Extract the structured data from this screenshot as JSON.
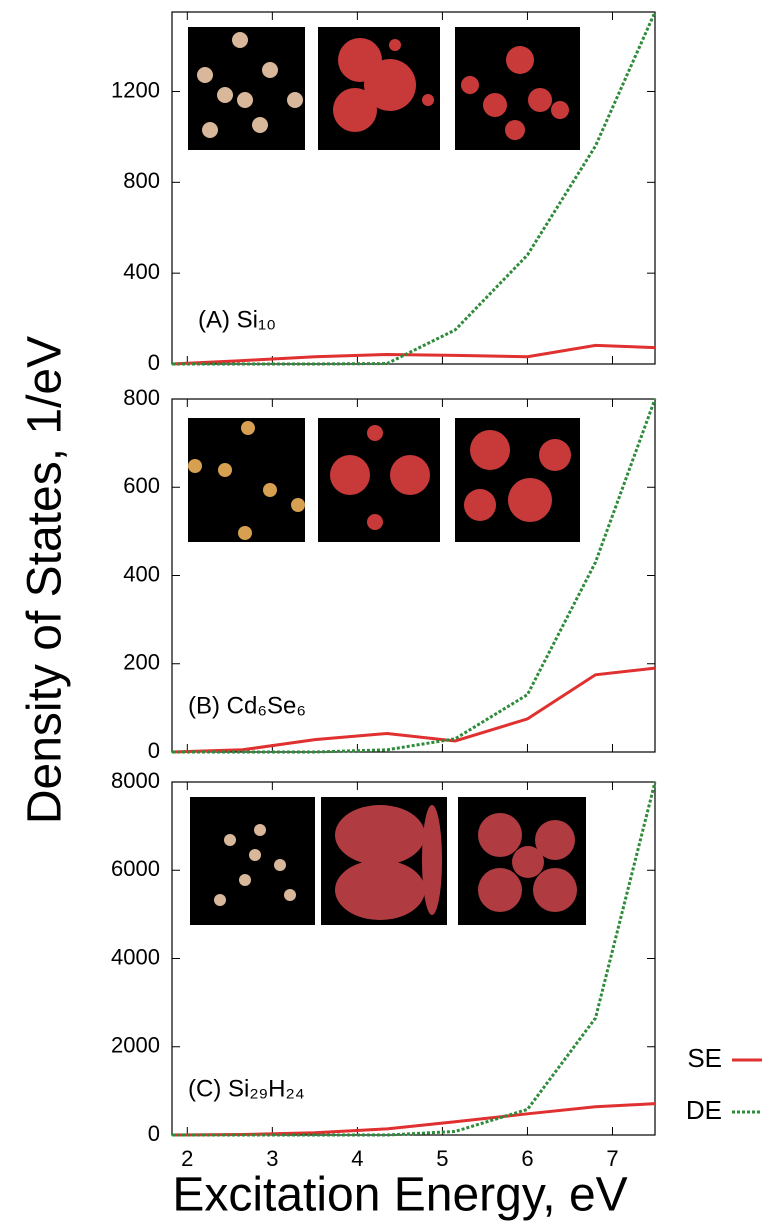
{
  "xlabel": "Excitation Energy, eV",
  "ylabel": "Density of States, 1/eV",
  "chart_data": [
    {
      "type": "line",
      "annotation": "(A) Si₁₀",
      "x": [
        1.82,
        2.65,
        3.5,
        4.35,
        5.15,
        6.0,
        6.8,
        7.5
      ],
      "xlim": [
        1.82,
        7.5
      ],
      "xticks": [
        2,
        3,
        4,
        5,
        6,
        7
      ],
      "ylim": [
        0,
        1550
      ],
      "yticks": [
        0,
        400,
        800,
        1200
      ],
      "series": [
        {
          "color": "#e03030",
          "line_style": "solid",
          "values": [
            0,
            15,
            32,
            42,
            38,
            32,
            82,
            72
          ]
        },
        {
          "color": "#2e8b3a",
          "line_style": "dotted",
          "values": [
            0,
            0,
            0,
            2,
            150,
            480,
            960,
            1550
          ]
        }
      ]
    },
    {
      "type": "line",
      "annotation": "(B) Cd₆Se₆",
      "x": [
        1.82,
        2.65,
        3.5,
        4.35,
        5.15,
        6.0,
        6.8,
        7.5
      ],
      "xlim": [
        1.82,
        7.5
      ],
      "xticks": [
        2,
        3,
        4,
        5,
        6,
        7
      ],
      "ylim": [
        0,
        800
      ],
      "yticks": [
        0,
        200,
        400,
        600,
        800
      ],
      "series": [
        {
          "color": "#e03030",
          "line_style": "solid",
          "values": [
            0,
            5,
            28,
            42,
            25,
            75,
            175,
            190
          ]
        },
        {
          "color": "#2e8b3a",
          "line_style": "dotted",
          "values": [
            0,
            0,
            0,
            5,
            30,
            130,
            430,
            800
          ]
        }
      ]
    },
    {
      "type": "line",
      "annotation": "(C) Si₂₉H₂₄",
      "x": [
        1.82,
        2.65,
        3.5,
        4.35,
        5.15,
        6.0,
        6.8,
        7.5
      ],
      "xlim": [
        1.82,
        7.5
      ],
      "xticks": [
        2,
        3,
        4,
        5,
        6,
        7
      ],
      "ylim": [
        0,
        8000
      ],
      "yticks": [
        0,
        2000,
        4000,
        6000,
        8000
      ],
      "series": [
        {
          "name": "SE",
          "color": "#e03030",
          "line_style": "solid",
          "values": [
            0,
            10,
            50,
            140,
            300,
            480,
            640,
            710
          ]
        },
        {
          "name": "DE",
          "color": "#2e8b3a",
          "line_style": "dotted",
          "values": [
            0,
            0,
            0,
            0,
            80,
            580,
            2650,
            8000
          ]
        }
      ]
    }
  ]
}
